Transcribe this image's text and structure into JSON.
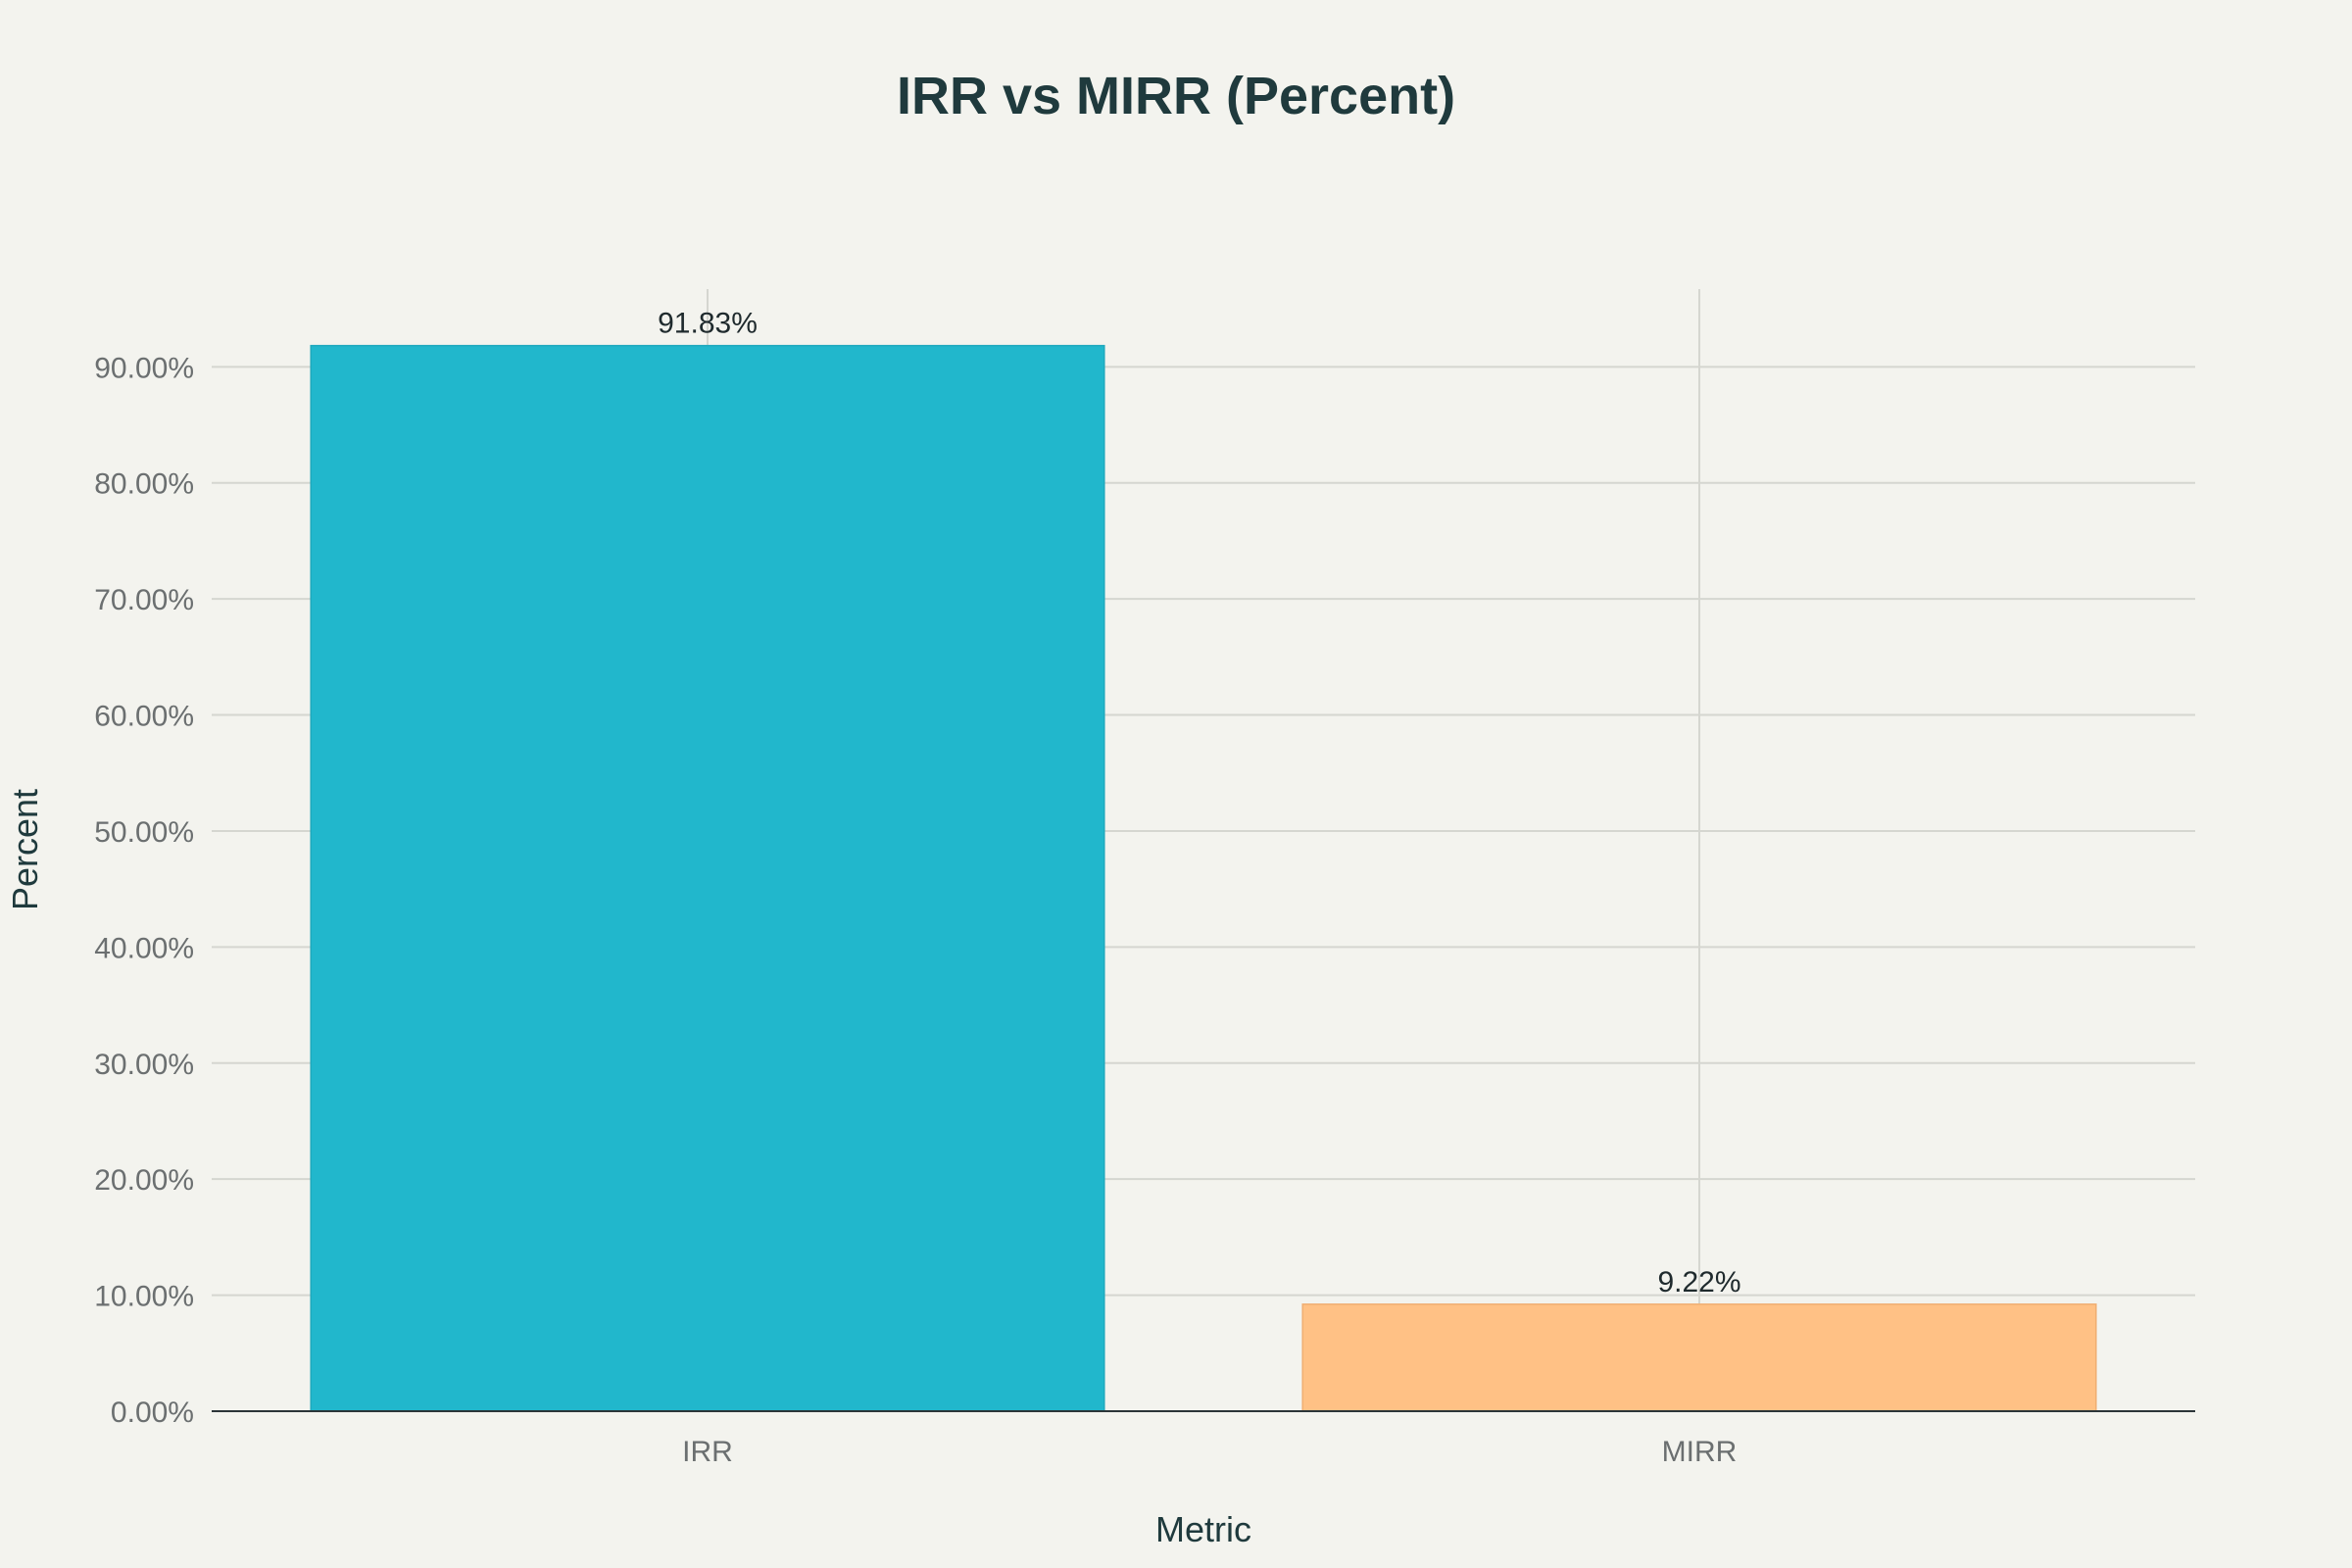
{
  "chart_data": {
    "type": "bar",
    "title": "IRR vs MIRR (Percent)",
    "xlabel": "Metric",
    "ylabel": "Percent",
    "categories": [
      "IRR",
      "MIRR"
    ],
    "values": [
      91.83,
      9.22
    ],
    "value_labels": [
      "91.83%",
      "9.22%"
    ],
    "colors": [
      "#21b7cc",
      "#ffc185"
    ],
    "ylim": [
      0,
      96.7
    ],
    "yticks": [
      0,
      10,
      20,
      30,
      40,
      50,
      60,
      70,
      80,
      90
    ],
    "ytick_labels": [
      "0.00%",
      "10.00%",
      "20.00%",
      "30.00%",
      "40.00%",
      "50.00%",
      "60.00%",
      "70.00%",
      "80.00%",
      "90.00%"
    ],
    "grid": true,
    "legend": "none"
  }
}
